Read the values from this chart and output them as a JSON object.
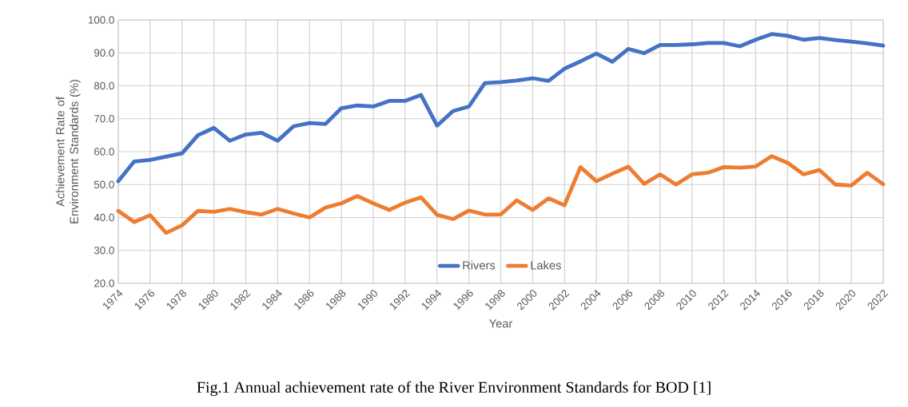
{
  "chart_data": {
    "type": "line",
    "xlabel": "Year",
    "ylabel": "Achievement Rate of Environment Standards (%)",
    "annotations": [
      "Fig.1    Annual achievement rate of the River Environment Standards for BOD [1]"
    ],
    "x": [
      1974,
      1975,
      1976,
      1977,
      1978,
      1979,
      1980,
      1981,
      1982,
      1983,
      1984,
      1985,
      1986,
      1987,
      1988,
      1989,
      1990,
      1991,
      1992,
      1993,
      1994,
      1995,
      1996,
      1997,
      1998,
      1999,
      2000,
      2001,
      2002,
      2003,
      2004,
      2005,
      2006,
      2007,
      2008,
      2009,
      2010,
      2011,
      2012,
      2013,
      2014,
      2015,
      2016,
      2017,
      2018,
      2019,
      2020,
      2021,
      2022
    ],
    "series": [
      {
        "name": "Rivers",
        "color": "#4472c4",
        "values": [
          51,
          57,
          57.5,
          58.5,
          59.5,
          65,
          67.2,
          63.3,
          65.2,
          65.7,
          63.3,
          67.7,
          68.7,
          68.4,
          73.2,
          74,
          73.7,
          75.4,
          75.4,
          77.2,
          67.9,
          72.3,
          73.7,
          80.8,
          81.1,
          81.6,
          82.3,
          81.5,
          85.2,
          87.4,
          89.8,
          87.3,
          91.2,
          89.9,
          92.4,
          92.4,
          92.6,
          93,
          93,
          92,
          94,
          95.7,
          95.2,
          94,
          94.5,
          93.9,
          93.4,
          92.9,
          92.2
        ]
      },
      {
        "name": "Lakes",
        "color": "#ed7d31",
        "values": [
          42,
          38.6,
          40.7,
          35.3,
          37.6,
          42,
          41.7,
          42.6,
          41.6,
          40.9,
          42.6,
          41.2,
          40,
          43,
          44.3,
          46.5,
          44.3,
          42.3,
          44.5,
          46.1,
          40.8,
          39.5,
          42.1,
          40.9,
          40.9,
          45.2,
          42.3,
          45.8,
          43.7,
          55.3,
          51,
          53.3,
          55.4,
          50.2,
          53.1,
          50,
          53.1,
          53.6,
          55.3,
          55.1,
          55.5,
          58.6,
          56.6,
          53.1,
          54.4,
          50,
          49.7,
          53.6,
          50.1
        ]
      }
    ],
    "xlim": [
      1974,
      2022
    ],
    "xticks": [
      1974,
      1976,
      1978,
      1980,
      1982,
      1984,
      1986,
      1988,
      1990,
      1992,
      1994,
      1996,
      1998,
      2000,
      2002,
      2004,
      2006,
      2008,
      2010,
      2012,
      2014,
      2016,
      2018,
      2020,
      2022
    ],
    "ylim": [
      20,
      100
    ],
    "yticks": [
      {
        "value": 20,
        "label": "20.0"
      },
      {
        "value": 30,
        "label": "30.0"
      },
      {
        "value": 40,
        "label": "40.0"
      },
      {
        "value": 50,
        "label": "50.0"
      },
      {
        "value": 60,
        "label": "60.0"
      },
      {
        "value": 70,
        "label": "70.0"
      },
      {
        "value": 80,
        "label": "80.0"
      },
      {
        "value": 90,
        "label": "90.0"
      },
      {
        "value": 100,
        "label": "100.0"
      }
    ],
    "grid": true,
    "legend": "bottom",
    "marker": "none",
    "line_style": "solid"
  }
}
